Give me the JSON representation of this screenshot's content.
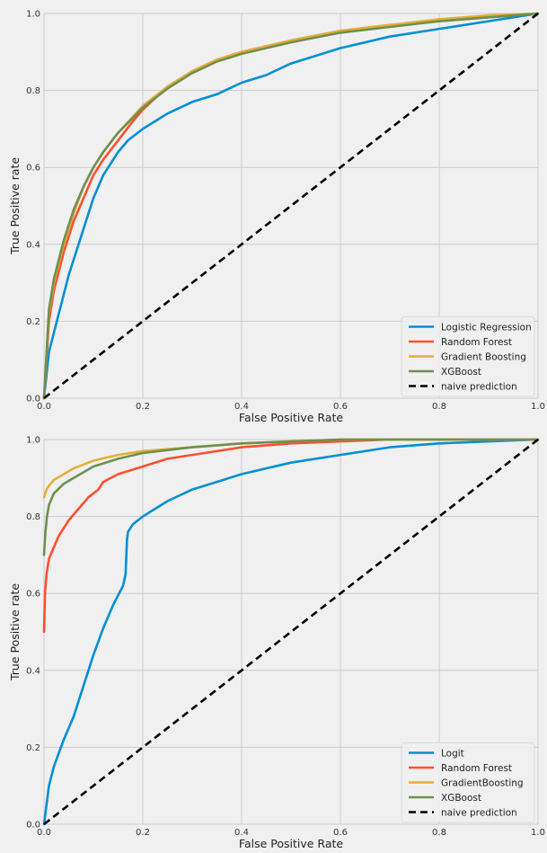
{
  "chart_data": [
    {
      "type": "line",
      "title": "",
      "xlabel": "False Positive Rate",
      "ylabel": "True Positive rate",
      "xlim": [
        0,
        1
      ],
      "ylim": [
        0,
        1
      ],
      "x_ticks": [
        "0.0",
        "0.2",
        "0.4",
        "0.6",
        "0.8",
        "1.0"
      ],
      "y_ticks": [
        "0.0",
        "0.2",
        "0.4",
        "0.6",
        "0.8",
        "1.0"
      ],
      "grid": true,
      "legend_position": "bottom-right",
      "series": [
        {
          "name": "Logistic Regression",
          "color": "#008fd5",
          "x": [
            0,
            0.01,
            0.03,
            0.05,
            0.08,
            0.1,
            0.12,
            0.15,
            0.17,
            0.2,
            0.25,
            0.3,
            0.35,
            0.4,
            0.45,
            0.5,
            0.55,
            0.6,
            0.7,
            0.8,
            0.9,
            1.0
          ],
          "y": [
            0,
            0.12,
            0.22,
            0.32,
            0.44,
            0.52,
            0.58,
            0.64,
            0.67,
            0.7,
            0.74,
            0.77,
            0.79,
            0.82,
            0.84,
            0.87,
            0.89,
            0.91,
            0.94,
            0.96,
            0.98,
            1.0
          ]
        },
        {
          "name": "Random Forest",
          "color": "#fc4f30",
          "x": [
            0,
            0.01,
            0.02,
            0.04,
            0.06,
            0.08,
            0.1,
            0.12,
            0.15,
            0.18,
            0.2,
            0.25,
            0.3,
            0.35,
            0.4,
            0.5,
            0.6,
            0.7,
            0.8,
            0.9,
            1.0
          ],
          "y": [
            0,
            0.2,
            0.28,
            0.38,
            0.46,
            0.52,
            0.58,
            0.62,
            0.67,
            0.72,
            0.75,
            0.81,
            0.85,
            0.88,
            0.9,
            0.93,
            0.955,
            0.97,
            0.98,
            0.99,
            1.0
          ]
        },
        {
          "name": "Gradient Boosting",
          "color": "#e5ae38",
          "x": [
            0,
            0.01,
            0.02,
            0.04,
            0.06,
            0.08,
            0.1,
            0.12,
            0.15,
            0.2,
            0.25,
            0.3,
            0.35,
            0.4,
            0.5,
            0.6,
            0.7,
            0.8,
            0.9,
            1.0
          ],
          "y": [
            0,
            0.22,
            0.3,
            0.4,
            0.48,
            0.55,
            0.6,
            0.64,
            0.69,
            0.76,
            0.81,
            0.85,
            0.88,
            0.9,
            0.93,
            0.955,
            0.97,
            0.985,
            0.995,
            1.0
          ]
        },
        {
          "name": "XGBoost",
          "color": "#6d904f",
          "x": [
            0,
            0.01,
            0.02,
            0.04,
            0.06,
            0.08,
            0.1,
            0.12,
            0.15,
            0.2,
            0.25,
            0.3,
            0.35,
            0.4,
            0.5,
            0.6,
            0.7,
            0.8,
            0.9,
            1.0
          ],
          "y": [
            0,
            0.23,
            0.31,
            0.41,
            0.49,
            0.55,
            0.6,
            0.64,
            0.69,
            0.755,
            0.805,
            0.845,
            0.875,
            0.895,
            0.925,
            0.95,
            0.965,
            0.98,
            0.99,
            1.0
          ]
        },
        {
          "name": "naive prediction",
          "color": "#000000",
          "dashed": true,
          "x": [
            0,
            1
          ],
          "y": [
            0,
            1
          ]
        }
      ]
    },
    {
      "type": "line",
      "title": "",
      "xlabel": "False Positive Rate",
      "ylabel": "True Positive rate",
      "xlim": [
        0,
        1
      ],
      "ylim": [
        0,
        1
      ],
      "x_ticks": [
        "0.0",
        "0.2",
        "0.4",
        "0.6",
        "0.8",
        "1.0"
      ],
      "y_ticks": [
        "0.0",
        "0.2",
        "0.4",
        "0.6",
        "0.8",
        "1.0"
      ],
      "grid": true,
      "legend_position": "bottom-right",
      "series": [
        {
          "name": "Logit",
          "color": "#008fd5",
          "x": [
            0,
            0.01,
            0.02,
            0.04,
            0.06,
            0.08,
            0.1,
            0.12,
            0.14,
            0.16,
            0.165,
            0.168,
            0.17,
            0.18,
            0.2,
            0.25,
            0.3,
            0.35,
            0.4,
            0.5,
            0.6,
            0.7,
            0.8,
            0.9,
            1.0
          ],
          "y": [
            0,
            0.1,
            0.15,
            0.22,
            0.28,
            0.36,
            0.44,
            0.51,
            0.57,
            0.62,
            0.65,
            0.74,
            0.76,
            0.78,
            0.8,
            0.84,
            0.87,
            0.89,
            0.91,
            0.94,
            0.96,
            0.98,
            0.99,
            0.995,
            1.0
          ]
        },
        {
          "name": "Random Forest",
          "color": "#fc4f30",
          "x": [
            0,
            0.002,
            0.005,
            0.01,
            0.02,
            0.03,
            0.05,
            0.07,
            0.09,
            0.11,
            0.12,
            0.15,
            0.2,
            0.25,
            0.3,
            0.4,
            0.5,
            0.6,
            0.7,
            0.8,
            0.9,
            1.0
          ],
          "y": [
            0.5,
            0.6,
            0.65,
            0.69,
            0.72,
            0.75,
            0.79,
            0.82,
            0.85,
            0.87,
            0.89,
            0.91,
            0.93,
            0.95,
            0.96,
            0.98,
            0.99,
            0.995,
            1.0,
            1.0,
            1.0,
            1.0
          ]
        },
        {
          "name": "GradientBoosting",
          "color": "#e5ae38",
          "x": [
            0,
            0.005,
            0.01,
            0.02,
            0.04,
            0.06,
            0.08,
            0.1,
            0.15,
            0.2,
            0.3,
            0.4,
            0.5,
            0.6,
            0.8,
            1.0
          ],
          "y": [
            0.85,
            0.87,
            0.88,
            0.895,
            0.91,
            0.925,
            0.935,
            0.945,
            0.96,
            0.97,
            0.98,
            0.99,
            0.995,
            1.0,
            1.0,
            1.0
          ]
        },
        {
          "name": "XGBoost",
          "color": "#6d904f",
          "x": [
            0,
            0.003,
            0.006,
            0.01,
            0.02,
            0.04,
            0.06,
            0.08,
            0.1,
            0.15,
            0.2,
            0.3,
            0.4,
            0.5,
            0.6,
            0.8,
            1.0
          ],
          "y": [
            0.7,
            0.76,
            0.8,
            0.83,
            0.86,
            0.885,
            0.9,
            0.915,
            0.93,
            0.95,
            0.965,
            0.98,
            0.99,
            0.995,
            1.0,
            1.0,
            1.0
          ]
        },
        {
          "name": "naive prediction",
          "color": "#000000",
          "dashed": true,
          "x": [
            0,
            1
          ],
          "y": [
            0,
            1
          ]
        }
      ]
    }
  ]
}
